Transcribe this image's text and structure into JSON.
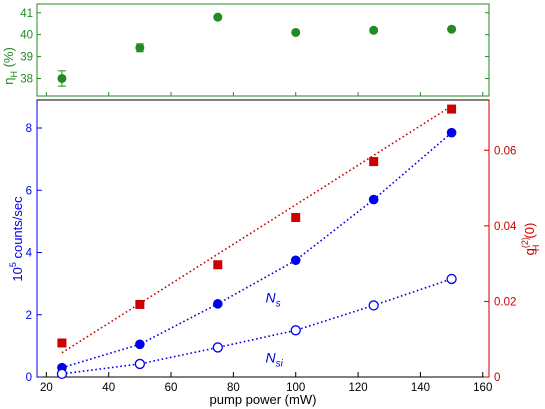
{
  "chart_data": [
    {
      "type": "scatter",
      "panel": "top",
      "x": [
        25,
        50,
        75,
        100,
        125,
        150
      ],
      "xlim": [
        17,
        162
      ],
      "ylim": [
        37.2,
        41.4
      ],
      "yticks": [
        "38",
        "39",
        "40",
        "41"
      ],
      "ylabel": "η",
      "ylabel_sub": "H",
      "ylabel_unit": " (%)",
      "colors": {
        "axis": "#228b22",
        "marker": "#228b22"
      },
      "series": [
        {
          "values": [
            38.0,
            39.4,
            40.8,
            40.1,
            40.2,
            40.25
          ],
          "errors": [
            0.35,
            0.18,
            0.05,
            0.05,
            0.05,
            0.05
          ]
        }
      ]
    },
    {
      "type": "scatter",
      "panel": "bottom",
      "x": [
        25,
        50,
        75,
        100,
        125,
        150
      ],
      "xlim": [
        17,
        162
      ],
      "xticks": [
        "20",
        "40",
        "60",
        "80",
        "100",
        "120",
        "140",
        "160"
      ],
      "xlabel": "pump power (mW)",
      "ylim_left": [
        0,
        8.9
      ],
      "yticks_left": [
        "0",
        "2",
        "4",
        "6",
        "8"
      ],
      "ylabel_left_exp_base": "10",
      "ylabel_left_exp": "5",
      "ylabel_left_rest": " counts/sec",
      "ylim_right": [
        0,
        0.0733
      ],
      "yticks_right": [
        "0",
        "0.02",
        "0.04",
        "0.06"
      ],
      "ylabel_right_main": "g",
      "ylabel_right_sup": "(2)",
      "ylabel_right_sub": "H",
      "ylabel_right_tail": "(0)",
      "colors": {
        "left_axis": "#0000ee",
        "right_axis": "#cc0000",
        "ns": "#0000ee",
        "nsi": "#0000ee",
        "g2": "#cc0000"
      },
      "annotations": [
        {
          "main": "N",
          "sub": "s",
          "x": 107,
          "y": 2.55
        },
        {
          "main": "N",
          "sub": "si",
          "x": 107,
          "y": 0.62
        }
      ],
      "series": [
        {
          "id": "Ns",
          "axis": "left",
          "marker": "filled-circle",
          "values": [
            0.3,
            1.05,
            2.35,
            3.75,
            5.7,
            7.85
          ]
        },
        {
          "id": "Nsi",
          "axis": "left",
          "marker": "open-circle",
          "values": [
            0.1,
            0.42,
            0.95,
            1.5,
            2.3,
            3.15
          ]
        },
        {
          "id": "g2",
          "axis": "right",
          "marker": "filled-square",
          "values": [
            0.009,
            0.0192,
            0.0297,
            0.0422,
            0.057,
            0.0709
          ],
          "fit": {
            "x": [
              25,
              150
            ],
            "y": [
              0.0064,
              0.0717
            ]
          }
        }
      ]
    }
  ]
}
